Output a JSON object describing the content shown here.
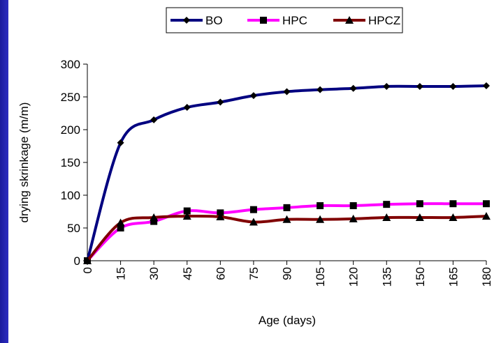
{
  "chart_data": {
    "type": "line",
    "title": "",
    "xlabel": "Age (days)",
    "ylabel": "drying skrinkage (m/m)",
    "x": [
      0,
      15,
      30,
      45,
      60,
      75,
      90,
      105,
      120,
      135,
      150,
      165,
      180
    ],
    "x_tick_labels": [
      "0",
      "15",
      "30",
      "45",
      "60",
      "75",
      "90",
      "105",
      "120",
      "135",
      "150",
      "165",
      "180"
    ],
    "ylim": [
      0,
      300
    ],
    "y_ticks": [
      0,
      50,
      100,
      150,
      200,
      250,
      300
    ],
    "y_tick_labels": [
      "0",
      "50",
      "100",
      "150",
      "200",
      "250",
      "300"
    ],
    "grid": false,
    "legend_position": "top",
    "series": [
      {
        "name": "BO",
        "color": "#000080",
        "marker": "diamond",
        "values": [
          0,
          180,
          215,
          234,
          242,
          252,
          258,
          261,
          263,
          266,
          266,
          266,
          267
        ]
      },
      {
        "name": "HPC",
        "color": "#ff00ff",
        "marker": "square",
        "values": [
          0,
          50,
          60,
          76,
          73,
          78,
          81,
          84,
          84,
          86,
          87,
          87,
          87
        ]
      },
      {
        "name": "HPCZ",
        "color": "#800000",
        "marker": "triangle",
        "values": [
          0,
          58,
          66,
          68,
          67,
          59,
          63,
          63,
          64,
          66,
          66,
          66,
          68
        ]
      }
    ]
  }
}
